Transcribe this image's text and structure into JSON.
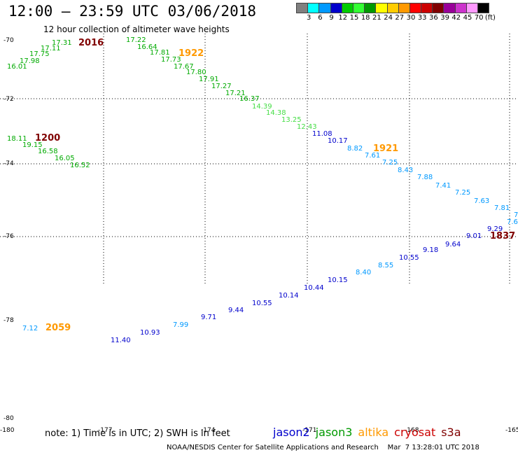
{
  "header": {
    "title": "12:00 – 23:59 UTC 03/06/2018",
    "subtitle": "12 hour collection of altimeter wave heights"
  },
  "colorbar": {
    "colors": [
      "#808080",
      "#00ffff",
      "#0099ff",
      "#0000cc",
      "#00cc00",
      "#33ff33",
      "#009900",
      "#ffff00",
      "#ffcc00",
      "#ff9900",
      "#ff0000",
      "#cc0000",
      "#800000",
      "#990099",
      "#cc33cc",
      "#ff99ff",
      "#000000"
    ],
    "labels": [
      "3",
      "6",
      "9",
      "12",
      "15",
      "18",
      "21",
      "24",
      "27",
      "30",
      "33",
      "36",
      "39",
      "42",
      "45",
      "70",
      "(ft)"
    ]
  },
  "map": {
    "lat_labels": [
      "-70",
      "-72",
      "-74",
      "-76",
      "-78",
      "-80"
    ],
    "lon_labels": [
      "-180",
      "-177",
      "-174",
      "-171",
      "-168",
      "-165"
    ],
    "wave_heights": [
      {
        "v": "16.01",
        "c": "#00aa00"
      },
      {
        "v": "17.98",
        "c": "#00aa00"
      },
      {
        "v": "17.75",
        "c": "#00aa00"
      },
      {
        "v": "17.11",
        "c": "#00aa00"
      },
      {
        "v": "17.31",
        "c": "#00aa00"
      },
      {
        "v": "17.22",
        "c": "#00aa00"
      },
      {
        "v": "16.64",
        "c": "#00aa00"
      },
      {
        "v": "17.81",
        "c": "#00aa00"
      },
      {
        "v": "17.73",
        "c": "#00aa00"
      },
      {
        "v": "17.67",
        "c": "#00aa00"
      },
      {
        "v": "17.80",
        "c": "#00aa00"
      },
      {
        "v": "17.91",
        "c": "#00aa00"
      },
      {
        "v": "17.27",
        "c": "#00aa00"
      },
      {
        "v": "17.21",
        "c": "#00aa00"
      },
      {
        "v": "16.37",
        "c": "#00aa00"
      },
      {
        "v": "14.39",
        "c": "#44dd44"
      },
      {
        "v": "14.38",
        "c": "#44dd44"
      },
      {
        "v": "13.25",
        "c": "#44dd44"
      },
      {
        "v": "12.43",
        "c": "#44dd44"
      },
      {
        "v": "11.08",
        "c": "#0000cc"
      },
      {
        "v": "10.17",
        "c": "#0000cc"
      },
      {
        "v": "8.82",
        "c": "#0099ff"
      },
      {
        "v": "7.61",
        "c": "#0099ff"
      },
      {
        "v": "7.25",
        "c": "#0099ff"
      },
      {
        "v": "8.43",
        "c": "#0099ff"
      },
      {
        "v": "7.88",
        "c": "#0099ff"
      },
      {
        "v": "7.41",
        "c": "#0099ff"
      },
      {
        "v": "7.25",
        "c": "#0099ff"
      },
      {
        "v": "7.63",
        "c": "#0099ff"
      },
      {
        "v": "7.81",
        "c": "#0099ff"
      },
      {
        "v": "7.",
        "c": "#0099ff"
      },
      {
        "v": "7.6",
        "c": "#0099ff"
      },
      {
        "v": "18.11",
        "c": "#00aa00"
      },
      {
        "v": "19.15",
        "c": "#00aa00"
      },
      {
        "v": "16.58",
        "c": "#00aa00"
      },
      {
        "v": "16.05",
        "c": "#00aa00"
      },
      {
        "v": "16.52",
        "c": "#00aa00"
      },
      {
        "v": "9.29",
        "c": "#0000cc"
      },
      {
        "v": "9.01",
        "c": "#0000cc"
      },
      {
        "v": "9.64",
        "c": "#0000cc"
      },
      {
        "v": "9.18",
        "c": "#0000cc"
      },
      {
        "v": "10.55",
        "c": "#0000cc"
      },
      {
        "v": "8.55",
        "c": "#0099ff"
      },
      {
        "v": "8.40",
        "c": "#0099ff"
      },
      {
        "v": "10.15",
        "c": "#0000cc"
      },
      {
        "v": "10.44",
        "c": "#0000cc"
      },
      {
        "v": "10.14",
        "c": "#0000cc"
      },
      {
        "v": "10.55",
        "c": "#0000cc"
      },
      {
        "v": "9.44",
        "c": "#0000cc"
      },
      {
        "v": "9.71",
        "c": "#0000cc"
      },
      {
        "v": "7.99",
        "c": "#0099ff"
      },
      {
        "v": "10.93",
        "c": "#0000cc"
      },
      {
        "v": "11.40",
        "c": "#0000cc"
      },
      {
        "v": "7.12",
        "c": "#0099ff"
      }
    ],
    "pass_times": [
      {
        "t": "2016",
        "c": "#800000"
      },
      {
        "t": "1922",
        "c": "#ff9900"
      },
      {
        "t": "1200",
        "c": "#800000"
      },
      {
        "t": "1921",
        "c": "#ff9900"
      },
      {
        "t": "1837",
        "c": "#800000"
      },
      {
        "t": "2059",
        "c": "#ff9900"
      }
    ]
  },
  "footer": {
    "note": "note:  1) Time is in UTC;  2) SWH is in feet",
    "legend": [
      {
        "name": "jason2",
        "color": "#0000cc"
      },
      {
        "name": "jason3",
        "color": "#009900"
      },
      {
        "name": "altika",
        "color": "#ff9900"
      },
      {
        "name": "cryosat",
        "color": "#cc0000"
      },
      {
        "name": "s3a",
        "color": "#800000"
      }
    ],
    "credit": "NOAA/NESDIS Center for Satellite Applications and Research    Mar  7 13:28:01 UTC 2018"
  }
}
